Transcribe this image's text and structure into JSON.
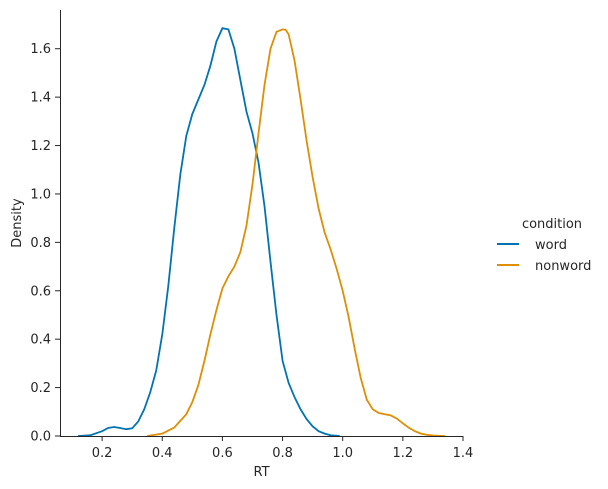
{
  "chart_data": {
    "type": "line",
    "subtype": "kde",
    "title": "",
    "xlabel": "RT",
    "ylabel": "Density",
    "xlim": [
      0.06,
      1.4
    ],
    "ylim": [
      0,
      1.76
    ],
    "xticks": [
      "0.2",
      "0.4",
      "0.6",
      "0.8",
      "1.0",
      "1.2",
      "1.4"
    ],
    "yticks": [
      "0.0",
      "0.2",
      "0.4",
      "0.6",
      "0.8",
      "1.0",
      "1.2",
      "1.4",
      "1.6"
    ],
    "grid": false,
    "legend": {
      "title": "condition",
      "placement": "right",
      "entries": [
        "word",
        "nonword"
      ]
    },
    "series": [
      {
        "name": "word",
        "color": "#0173b2",
        "x": [
          0.12,
          0.16,
          0.2,
          0.22,
          0.24,
          0.26,
          0.28,
          0.3,
          0.32,
          0.34,
          0.36,
          0.38,
          0.4,
          0.42,
          0.44,
          0.46,
          0.48,
          0.5,
          0.52,
          0.54,
          0.56,
          0.58,
          0.6,
          0.62,
          0.64,
          0.66,
          0.68,
          0.7,
          0.72,
          0.74,
          0.76,
          0.78,
          0.8,
          0.82,
          0.84,
          0.86,
          0.88,
          0.9,
          0.92,
          0.94,
          0.96,
          0.99
        ],
        "y": [
          0.0,
          0.003,
          0.02,
          0.033,
          0.037,
          0.033,
          0.028,
          0.032,
          0.06,
          0.11,
          0.18,
          0.27,
          0.42,
          0.62,
          0.86,
          1.08,
          1.24,
          1.33,
          1.39,
          1.45,
          1.53,
          1.63,
          1.685,
          1.68,
          1.6,
          1.47,
          1.34,
          1.25,
          1.13,
          0.95,
          0.72,
          0.5,
          0.31,
          0.22,
          0.16,
          0.11,
          0.07,
          0.04,
          0.02,
          0.01,
          0.003,
          0.0
        ]
      },
      {
        "name": "nonword",
        "color": "#de8f05",
        "x": [
          0.35,
          0.4,
          0.44,
          0.48,
          0.5,
          0.52,
          0.54,
          0.56,
          0.58,
          0.6,
          0.62,
          0.64,
          0.66,
          0.68,
          0.7,
          0.72,
          0.74,
          0.76,
          0.78,
          0.8,
          0.81,
          0.82,
          0.84,
          0.86,
          0.88,
          0.9,
          0.92,
          0.94,
          0.96,
          0.98,
          1.0,
          1.02,
          1.04,
          1.06,
          1.08,
          1.1,
          1.12,
          1.14,
          1.16,
          1.18,
          1.2,
          1.22,
          1.24,
          1.26,
          1.28,
          1.3,
          1.34
        ],
        "y": [
          0.0,
          0.01,
          0.035,
          0.09,
          0.14,
          0.21,
          0.31,
          0.42,
          0.52,
          0.61,
          0.66,
          0.7,
          0.76,
          0.87,
          1.04,
          1.25,
          1.45,
          1.6,
          1.67,
          1.68,
          1.678,
          1.66,
          1.55,
          1.39,
          1.22,
          1.07,
          0.94,
          0.84,
          0.77,
          0.69,
          0.6,
          0.49,
          0.36,
          0.24,
          0.15,
          0.11,
          0.095,
          0.09,
          0.085,
          0.072,
          0.052,
          0.034,
          0.02,
          0.01,
          0.005,
          0.002,
          0.0
        ]
      }
    ]
  }
}
